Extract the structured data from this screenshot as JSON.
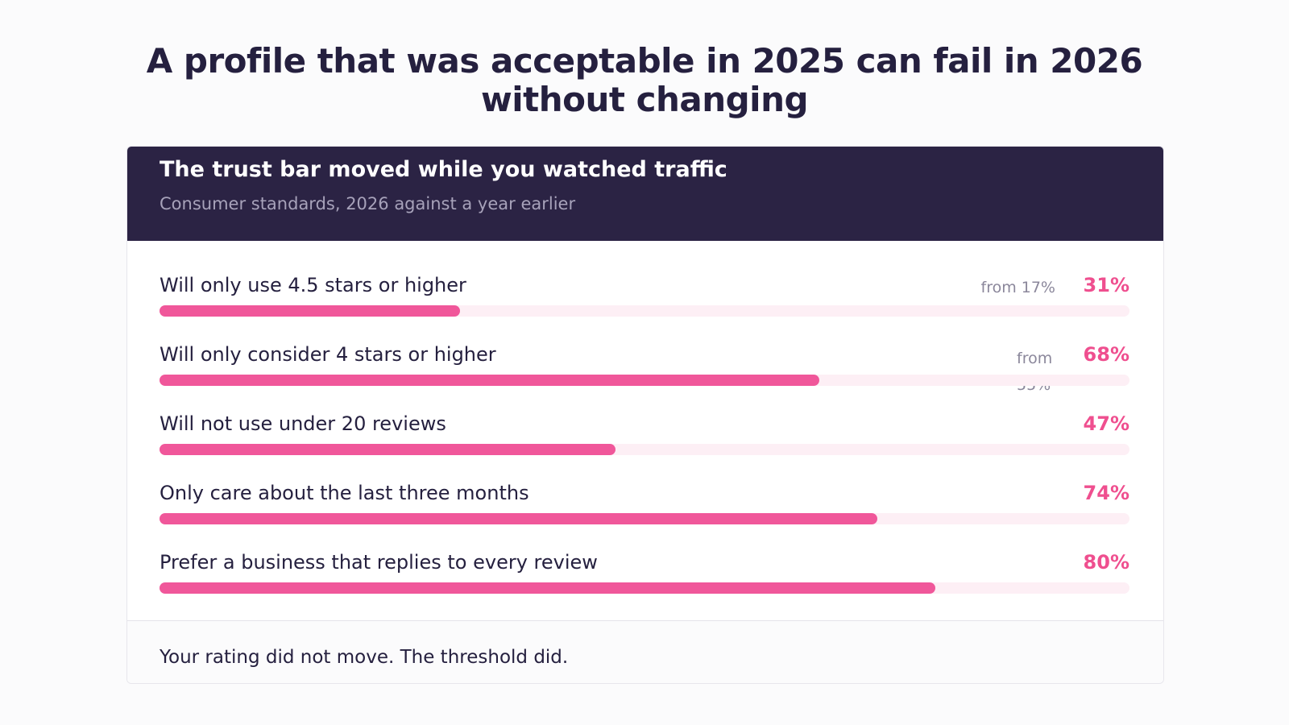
{
  "page": {
    "title": "A profile that was acceptable in 2025 can fail in 2026 without changing"
  },
  "card": {
    "title": "The trust bar moved while you watched traffic",
    "subtitle": "Consumer standards, 2026 against a year earlier",
    "footer": "Your rating did not move. The threshold did."
  },
  "colors": {
    "header_background": "#2b2344",
    "accent": "#ef4f8f",
    "track": "#fdeff5",
    "text": "#25203f"
  },
  "chart_data": {
    "type": "bar",
    "orientation": "horizontal",
    "title": "The trust bar moved while you watched traffic",
    "subtitle": "Consumer standards, 2026 against a year earlier",
    "xlim": [
      0,
      100
    ],
    "unit": "%",
    "grid": false,
    "categories": [
      "Will only use 4.5 stars or higher",
      "Will only consider 4 stars or higher",
      "Will not use under 20 reviews",
      "Only care about the last three months",
      "Prefer a business that replies to every review"
    ],
    "values": [
      31,
      68,
      47,
      74,
      80
    ],
    "value_labels": [
      "31%",
      "68%",
      "47%",
      "74%",
      "80%"
    ],
    "previous_values": [
      17,
      55,
      null,
      null,
      null
    ],
    "previous_labels": [
      "from 17%",
      "from 55%",
      "",
      "",
      ""
    ]
  }
}
